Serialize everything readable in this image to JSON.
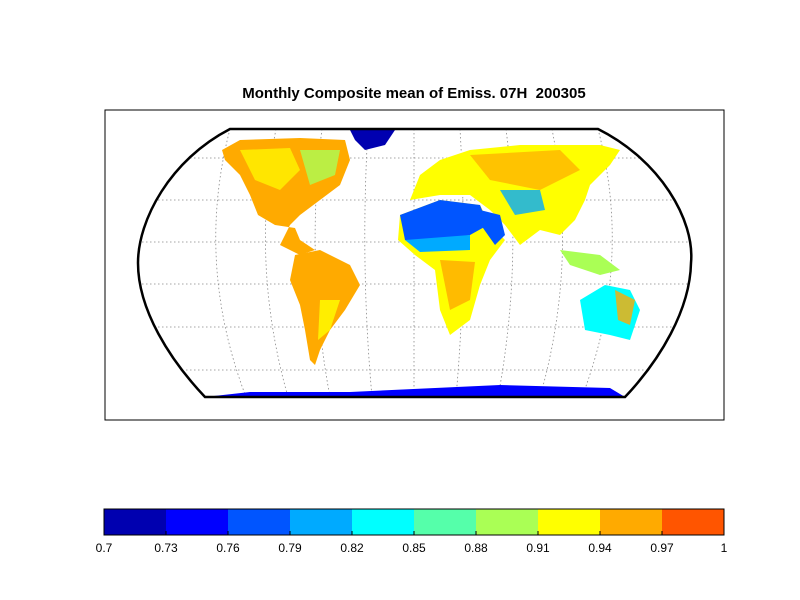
{
  "title": "Monthly Composite mean of Emiss. 07H  200305",
  "colorbar": {
    "ticks": [
      0.7,
      0.73,
      0.76,
      0.79,
      0.82,
      0.85,
      0.88,
      0.91,
      0.94,
      0.97,
      1
    ],
    "colors": [
      "#0000b0",
      "#0000ff",
      "#0055ff",
      "#00aaff",
      "#00ffff",
      "#55ffaa",
      "#aaff55",
      "#ffff00",
      "#ffaa00",
      "#ff5500"
    ]
  }
}
